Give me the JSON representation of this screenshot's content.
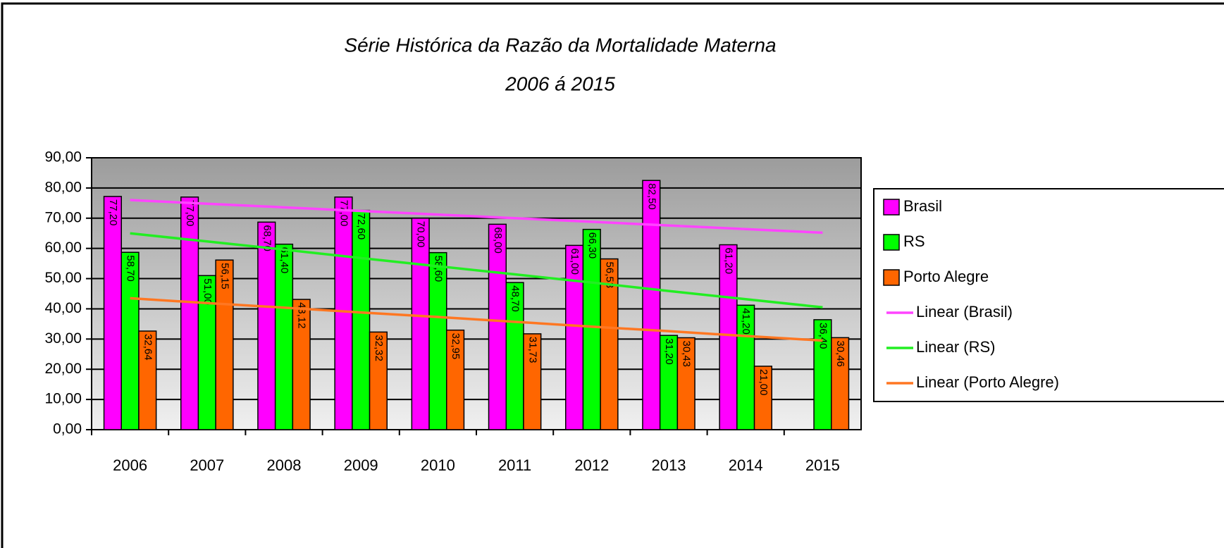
{
  "chart_data": {
    "type": "bar",
    "title": "Série Histórica da Razão da Mortalidade Materna",
    "subtitle": "2006 á 2015",
    "categories": [
      "2006",
      "2007",
      "2008",
      "2009",
      "2010",
      "2011",
      "2012",
      "2013",
      "2014",
      "2015"
    ],
    "series": [
      {
        "name": "Brasil",
        "color": "#ff00ff",
        "values": [
          77.2,
          77.0,
          68.7,
          77.0,
          70.0,
          68.0,
          61.0,
          82.5,
          61.2,
          null
        ],
        "value_labels": [
          "77,20",
          "77,00",
          "68,70",
          "77,00",
          "70,00",
          "68,00",
          "61,00",
          "82,50",
          "61,20",
          null
        ]
      },
      {
        "name": "RS",
        "color": "#00ff00",
        "values": [
          58.7,
          51.0,
          61.4,
          72.6,
          58.6,
          48.7,
          66.3,
          31.2,
          41.2,
          36.4
        ],
        "value_labels": [
          "58,70",
          "51,00",
          "61,40",
          "72,60",
          "58,60",
          "48,70",
          "66,30",
          "31,20",
          "41,20",
          "36,40"
        ]
      },
      {
        "name": "Porto Alegre",
        "color": "#ff6600",
        "values": [
          32.64,
          56.15,
          43.12,
          32.32,
          32.95,
          31.73,
          56.53,
          30.43,
          21.0,
          30.46
        ],
        "value_labels": [
          "32,64",
          "56,15",
          "43,12",
          "32,32",
          "32,95",
          "31,73",
          "56,53",
          "30,43",
          "21,00",
          "30,46"
        ]
      },
      {
        "name": "Linear (Brasil)",
        "type": "line",
        "color": "#ff44ff",
        "values": [
          76.0,
          74.8,
          73.6,
          72.4,
          71.2,
          70.0,
          68.8,
          67.6,
          66.4,
          65.2
        ]
      },
      {
        "name": "Linear (RS)",
        "type": "line",
        "color": "#22ee22",
        "values": [
          65.0,
          62.3,
          59.6,
          56.8,
          54.1,
          51.4,
          48.7,
          45.9,
          43.2,
          40.5
        ]
      },
      {
        "name": "Linear (Porto Alegre)",
        "type": "line",
        "color": "#ff7722",
        "values": [
          43.5,
          41.9,
          40.4,
          38.8,
          37.3,
          35.7,
          34.1,
          32.6,
          31.0,
          29.5
        ]
      }
    ],
    "ylim": [
      0,
      90
    ],
    "yticks": [
      {
        "value": 0,
        "label": "0,00"
      },
      {
        "value": 10,
        "label": "10,00"
      },
      {
        "value": 20,
        "label": "20,00"
      },
      {
        "value": 30,
        "label": "30,00"
      },
      {
        "value": 40,
        "label": "40,00"
      },
      {
        "value": 50,
        "label": "50,00"
      },
      {
        "value": 60,
        "label": "60,00"
      },
      {
        "value": 70,
        "label": "70,00"
      },
      {
        "value": 80,
        "label": "80,00"
      },
      {
        "value": 90,
        "label": "90,00"
      }
    ],
    "grid": true,
    "legend": "right"
  }
}
